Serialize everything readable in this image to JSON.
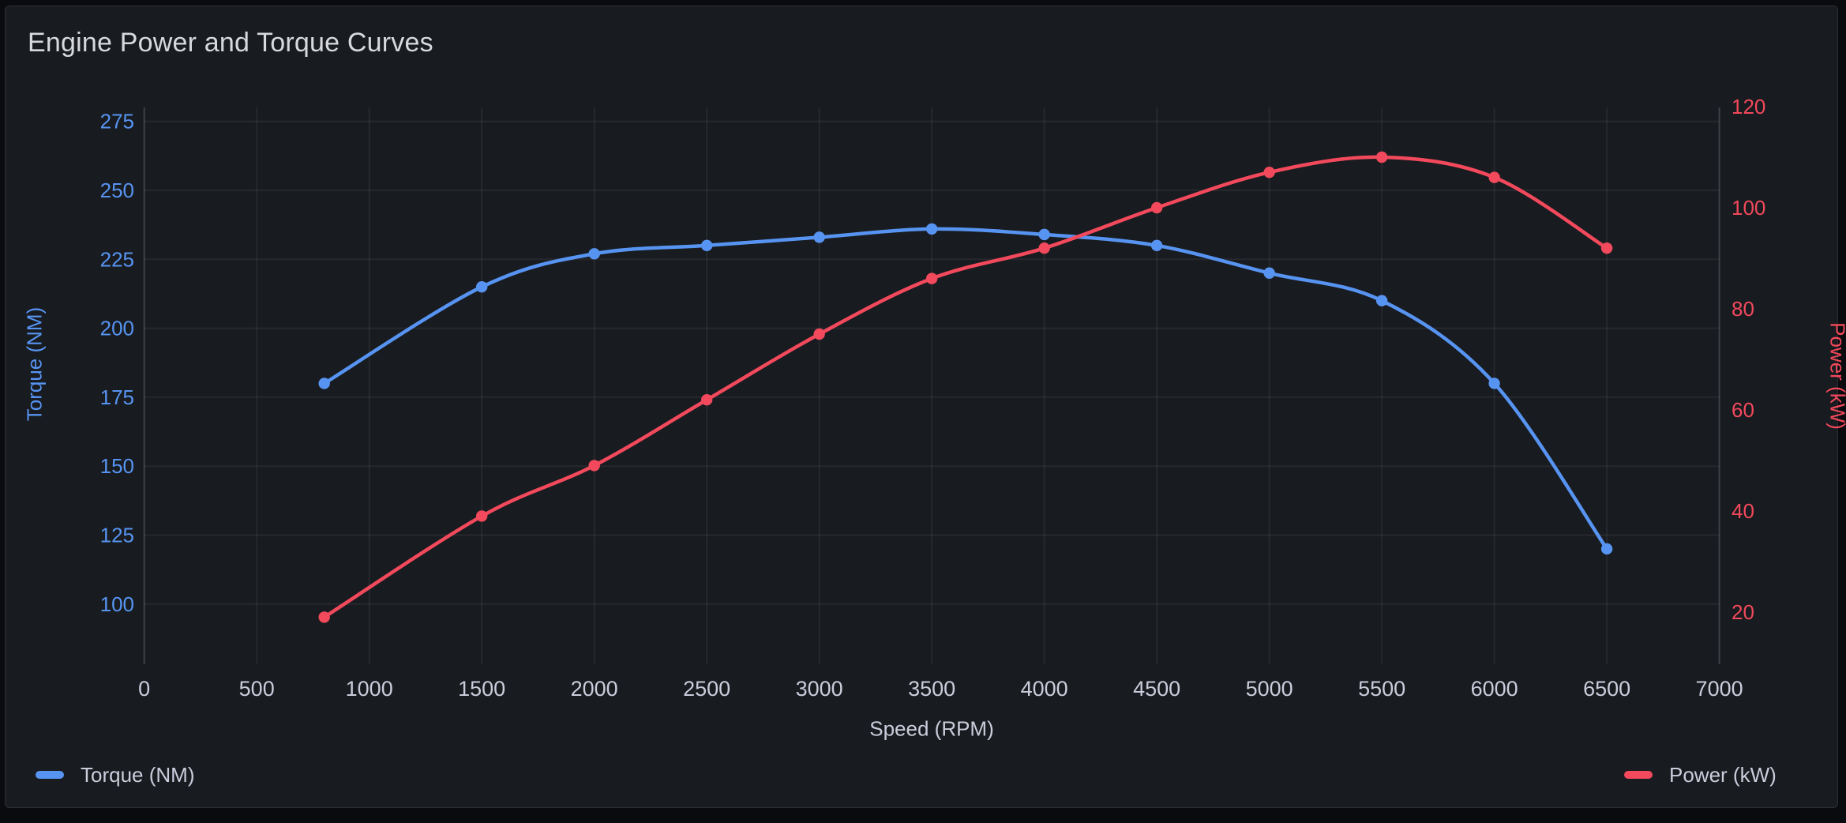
{
  "panel": {
    "title": "Engine Power and Torque Curves"
  },
  "colors": {
    "page_bg": "#0a0b0e",
    "panel_bg": "#181b1f",
    "panel_border": "#2c2e33",
    "torque_blue": "#5794f2",
    "power_red": "#f2495c",
    "text": "#ccccdc",
    "grid": "rgba(204,204,220,0.08)",
    "axis_line": "rgba(204,204,220,0.15)"
  },
  "legend": [
    {
      "label": "Torque (NM)",
      "color": "#5794f2"
    },
    {
      "label": "Power (kW)",
      "color": "#f2495c"
    }
  ],
  "chart_data": {
    "type": "line",
    "title": "Engine Power and Torque Curves",
    "xlabel": "Speed (RPM)",
    "x_ticks": [
      0,
      500,
      1000,
      1500,
      2000,
      2500,
      3000,
      3500,
      4000,
      4500,
      5000,
      5500,
      6000,
      6500,
      7000
    ],
    "x": [
      800,
      1500,
      2000,
      2500,
      3000,
      3500,
      4000,
      4500,
      5000,
      5500,
      6000,
      6500
    ],
    "series": [
      {
        "name": "Torque (NM)",
        "axis": "left",
        "color": "#5794f2",
        "values": [
          180,
          215,
          227,
          230,
          233,
          236,
          234,
          230,
          220,
          210,
          180,
          120
        ]
      },
      {
        "name": "Power (kW)",
        "axis": "right",
        "color": "#f2495c",
        "values": [
          19,
          39,
          49,
          62,
          75,
          86,
          92,
          100,
          107,
          110,
          106,
          92
        ]
      }
    ],
    "y_left": {
      "label": "Torque (NM)",
      "ticks": [
        275,
        250,
        225,
        200,
        175,
        150,
        125,
        100
      ],
      "range": [
        275,
        100
      ]
    },
    "y_right": {
      "label": "Power (kW)",
      "ticks": [
        120,
        100,
        80,
        60,
        40,
        20
      ],
      "range": [
        120,
        20
      ]
    },
    "x_range": [
      0,
      7000
    ],
    "grid": true,
    "legend_position": "bottom",
    "smooth": true
  }
}
